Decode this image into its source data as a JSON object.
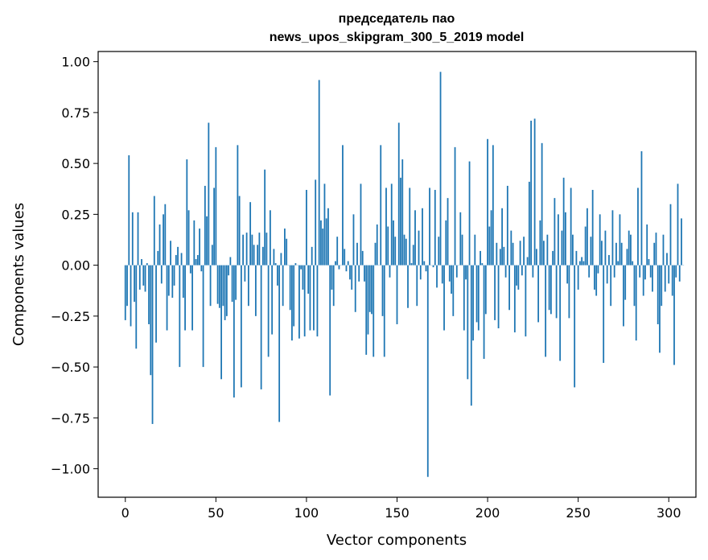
{
  "chart_data": {
    "type": "bar",
    "title_line1": "председатель пао",
    "title_line2": "news_upos_skipgram_300_5_2019 model",
    "xlabel": "Vector components",
    "ylabel": "Components values",
    "xlim": [
      -15,
      315
    ],
    "ylim": [
      -1.14,
      1.05
    ],
    "xticks": [
      0,
      50,
      100,
      150,
      200,
      250,
      300
    ],
    "yticks": [
      -1.0,
      -0.75,
      -0.5,
      -0.25,
      0.0,
      0.25,
      0.5,
      0.75,
      1.0
    ],
    "ytick_labels": [
      "−1.00",
      "−0.75",
      "−0.50",
      "−0.25",
      "0.00",
      "0.25",
      "0.50",
      "0.75",
      "1.00"
    ],
    "bar_color": "#1f77b4",
    "grid": false,
    "values": [
      -0.27,
      -0.2,
      0.54,
      -0.3,
      0.26,
      -0.18,
      -0.41,
      0.26,
      -0.12,
      0.03,
      -0.1,
      -0.13,
      0.01,
      -0.29,
      -0.54,
      -0.78,
      0.34,
      -0.38,
      0.07,
      0.2,
      -0.09,
      0.25,
      0.3,
      -0.32,
      -0.15,
      0.12,
      -0.16,
      -0.1,
      0.05,
      0.09,
      -0.5,
      0.06,
      -0.16,
      -0.32,
      0.52,
      0.27,
      -0.04,
      -0.32,
      0.22,
      0.03,
      0.05,
      0.18,
      -0.03,
      -0.5,
      0.39,
      0.24,
      0.7,
      -0.2,
      0.1,
      0.38,
      0.58,
      -0.19,
      -0.21,
      -0.56,
      -0.2,
      -0.27,
      -0.25,
      -0.05,
      0.04,
      -0.18,
      -0.65,
      -0.17,
      0.59,
      0.34,
      -0.6,
      0.15,
      -0.08,
      0.16,
      -0.2,
      0.31,
      0.15,
      0.1,
      -0.25,
      0.1,
      0.16,
      -0.61,
      0.09,
      0.47,
      0.16,
      -0.45,
      0.27,
      -0.34,
      0.08,
      0.01,
      -0.1,
      -0.77,
      0.06,
      -0.2,
      0.18,
      0.13,
      0.0,
      -0.22,
      -0.37,
      -0.3,
      0.01,
      0.0,
      -0.36,
      -0.02,
      -0.12,
      -0.35,
      0.37,
      -0.14,
      -0.32,
      0.09,
      -0.32,
      0.42,
      -0.35,
      0.91,
      0.22,
      0.18,
      0.4,
      0.23,
      0.28,
      -0.64,
      -0.12,
      -0.2,
      0.02,
      0.14,
      -0.02,
      0.0,
      0.59,
      0.08,
      -0.03,
      0.02,
      -0.07,
      -0.12,
      0.25,
      -0.23,
      0.11,
      -0.08,
      0.4,
      0.07,
      -0.08,
      -0.44,
      -0.34,
      -0.23,
      -0.24,
      -0.45,
      0.11,
      0.2,
      0.0,
      0.59,
      -0.25,
      -0.45,
      0.38,
      0.19,
      -0.06,
      0.4,
      0.22,
      0.14,
      -0.29,
      0.7,
      0.43,
      0.52,
      0.15,
      0.13,
      -0.21,
      0.38,
      0.01,
      0.1,
      0.27,
      -0.2,
      0.17,
      -0.07,
      0.28,
      0.02,
      -0.03,
      -1.04,
      0.38,
      0.0,
      -0.01,
      0.37,
      -0.11,
      0.14,
      0.95,
      -0.09,
      -0.32,
      0.22,
      0.33,
      -0.08,
      -0.14,
      -0.25,
      0.58,
      -0.06,
      0.0,
      0.26,
      0.15,
      -0.32,
      -0.07,
      -0.56,
      0.51,
      -0.69,
      -0.37,
      0.15,
      -0.28,
      -0.32,
      0.07,
      0.01,
      -0.46,
      -0.24,
      0.62,
      0.19,
      0.27,
      0.59,
      -0.27,
      0.11,
      -0.31,
      0.08,
      0.28,
      0.09,
      -0.06,
      0.39,
      -0.22,
      0.17,
      0.11,
      -0.33,
      -0.1,
      -0.12,
      0.12,
      -0.05,
      0.14,
      -0.35,
      0.04,
      0.41,
      0.71,
      -0.06,
      0.72,
      0.08,
      -0.28,
      0.22,
      0.6,
      0.12,
      -0.45,
      0.15,
      -0.22,
      -0.24,
      0.07,
      0.33,
      -0.26,
      0.25,
      -0.47,
      0.17,
      0.43,
      0.26,
      -0.09,
      -0.26,
      0.38,
      0.15,
      -0.6,
      0.07,
      -0.12,
      0.02,
      0.04,
      0.02,
      0.19,
      0.28,
      -0.06,
      0.14,
      0.37,
      -0.12,
      -0.15,
      -0.04,
      0.25,
      0.12,
      -0.48,
      0.17,
      -0.09,
      0.05,
      -0.2,
      0.27,
      -0.06,
      0.11,
      0.02,
      0.25,
      0.11,
      -0.3,
      -0.17,
      0.08,
      0.17,
      0.15,
      0.02,
      -0.2,
      -0.37,
      0.38,
      -0.06,
      0.56,
      -0.15,
      -0.07,
      0.2,
      0.03,
      -0.06,
      -0.13,
      0.11,
      0.16,
      -0.29,
      -0.43,
      -0.2,
      0.15,
      -0.13,
      0.06,
      -0.09,
      0.3,
      -0.15,
      -0.49,
      -0.06,
      0.4,
      -0.08,
      0.23,
      0.0
    ]
  }
}
